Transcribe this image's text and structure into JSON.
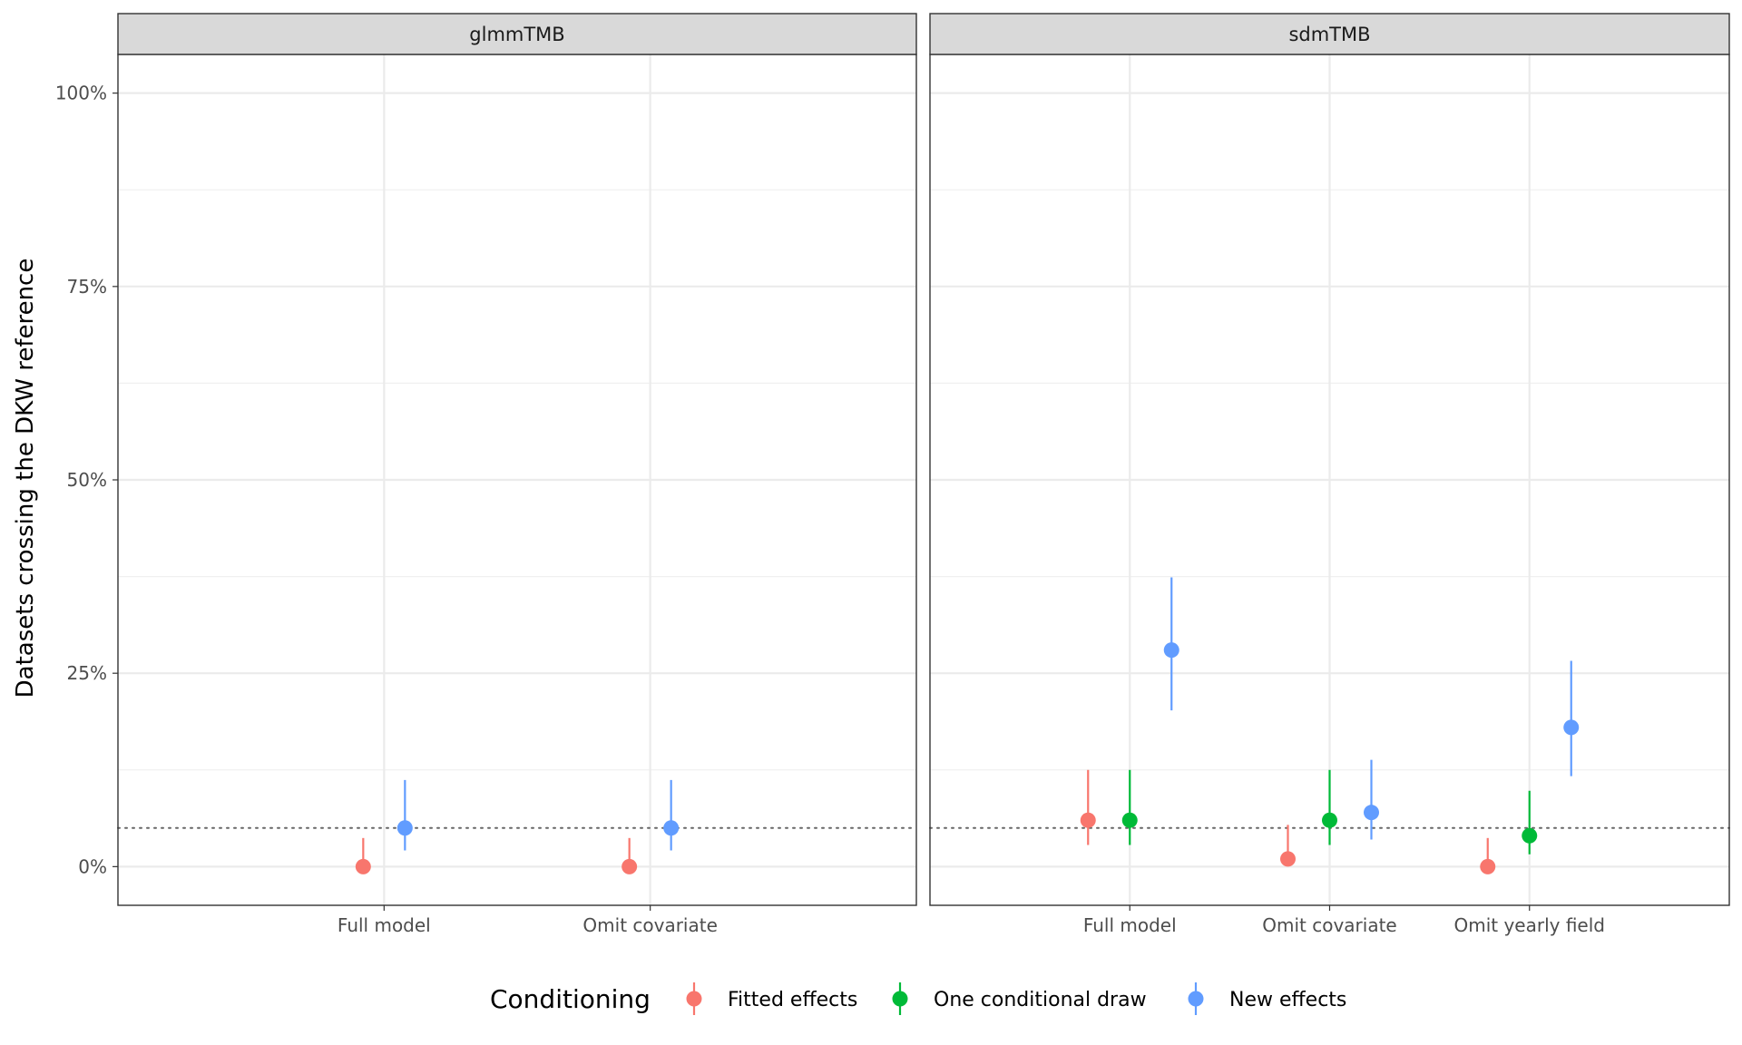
{
  "chart_data": {
    "type": "scatter",
    "subtype": "pointrange",
    "facet_strips": [
      "glmmTMB",
      "sdmTMB"
    ],
    "ylabel": "Datasets crossing the DKW reference",
    "xlabel": "",
    "ylim": [
      -0.05,
      1.05
    ],
    "yticks": [
      0,
      0.25,
      0.5,
      0.75,
      1.0
    ],
    "ytick_labels": [
      "0%",
      "25%",
      "50%",
      "75%",
      "100%"
    ],
    "reference_line": 0.05,
    "grid": true,
    "legend": {
      "title": "Conditioning",
      "position": "bottom",
      "entries": [
        {
          "name": "Fitted effects",
          "color": "#F8766D"
        },
        {
          "name": "One conditional draw",
          "color": "#00BA38"
        },
        {
          "name": "New effects",
          "color": "#619CFF"
        }
      ]
    },
    "panels": [
      {
        "strip": "glmmTMB",
        "categories": [
          "Full model",
          "Omit covariate"
        ],
        "series": [
          {
            "name": "Fitted effects",
            "values": [
              0.0,
              0.0
            ],
            "lower": [
              0.0,
              0.0
            ],
            "upper": [
              0.037,
              0.037
            ]
          },
          {
            "name": "New effects",
            "values": [
              0.05,
              0.05
            ],
            "lower": [
              0.021,
              0.021
            ],
            "upper": [
              0.112,
              0.112
            ]
          }
        ]
      },
      {
        "strip": "sdmTMB",
        "categories": [
          "Full model",
          "Omit covariate",
          "Omit yearly field"
        ],
        "series": [
          {
            "name": "Fitted effects",
            "values": [
              0.06,
              0.01,
              0.0
            ],
            "lower": [
              0.028,
              0.002,
              0.0
            ],
            "upper": [
              0.125,
              0.054,
              0.037
            ]
          },
          {
            "name": "One conditional draw",
            "values": [
              0.06,
              0.06,
              0.04
            ],
            "lower": [
              0.028,
              0.028,
              0.016
            ],
            "upper": [
              0.125,
              0.125,
              0.098
            ]
          },
          {
            "name": "New effects",
            "values": [
              0.28,
              0.07,
              0.18
            ],
            "lower": [
              0.202,
              0.035,
              0.117
            ],
            "upper": [
              0.374,
              0.138,
              0.266
            ]
          }
        ]
      }
    ]
  }
}
